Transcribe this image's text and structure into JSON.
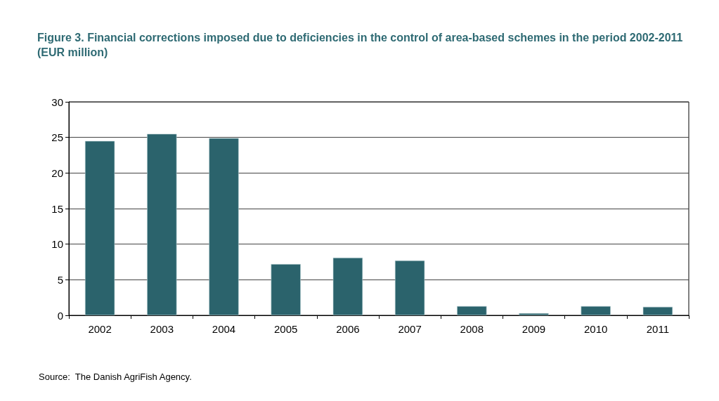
{
  "chart_data": {
    "type": "bar",
    "title": "Figure 3. Financial corrections imposed due to deficiencies in the control of area-based schemes in the period 2002-2011\n(EUR million)",
    "categories": [
      "2002",
      "2003",
      "2004",
      "2005",
      "2006",
      "2007",
      "2008",
      "2009",
      "2010",
      "2011"
    ],
    "values": [
      24.5,
      25.5,
      24.9,
      7.2,
      8.1,
      7.7,
      1.3,
      0.3,
      1.3,
      1.2
    ],
    "color": "#2b636c",
    "ylim": [
      0,
      30
    ],
    "yticks": [
      0,
      5,
      10,
      15,
      20,
      25,
      30
    ],
    "grid": "y",
    "annotations": [
      "Source:  The Danish AgriFish Agency."
    ]
  }
}
